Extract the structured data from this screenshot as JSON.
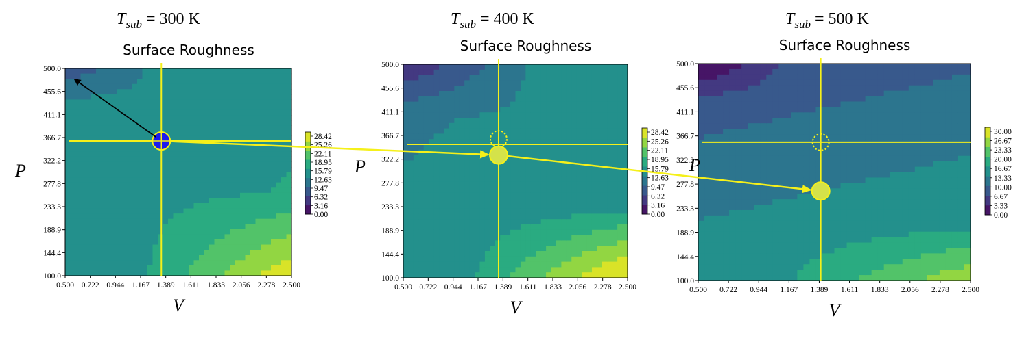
{
  "chart_data": [
    {
      "type": "heatmap",
      "title": "Surface Roughness",
      "tsub_label": "T",
      "tsub_sub": "sub",
      "tsub_value": "= 300 K",
      "xlabel": "V",
      "ylabel": "P",
      "x_ticks": [
        "0.500",
        "0.722",
        "0.944",
        "1.167",
        "1.389",
        "1.611",
        "1.833",
        "2.056",
        "2.278",
        "2.500"
      ],
      "y_ticks": [
        "500.0",
        "455.6",
        "411.1",
        "366.7",
        "322.2",
        "277.8",
        "233.3",
        "188.9",
        "144.4",
        "100.0"
      ],
      "xlim": [
        0.5,
        2.5
      ],
      "ylim": [
        100,
        500
      ],
      "colorbar_ticks": [
        "28.42",
        "25.26",
        "22.11",
        "18.95",
        "15.79",
        "12.63",
        "9.47",
        "6.32",
        "3.16",
        "0.00"
      ],
      "colorbar_range": [
        0,
        28.42
      ],
      "vmax": 30,
      "selected_point": {
        "V": 1.35,
        "P": 360
      },
      "selected_point_style": "blue",
      "crosshair": {
        "V": 1.35,
        "P": 360
      },
      "previous_point": null,
      "arrow_to": {
        "V": 0.55,
        "P": 485
      }
    },
    {
      "type": "heatmap",
      "title": "Surface Roughness",
      "tsub_label": "T",
      "tsub_sub": "sub",
      "tsub_value": "= 400 K",
      "xlabel": "V",
      "ylabel": "P",
      "x_ticks": [
        "0.500",
        "0.722",
        "0.944",
        "1.167",
        "1.389",
        "1.611",
        "1.833",
        "2.056",
        "2.278",
        "2.500"
      ],
      "y_ticks": [
        "500.0",
        "455.6",
        "411.1",
        "366.7",
        "322.2",
        "277.8",
        "233.3",
        "188.9",
        "144.4",
        "100.0"
      ],
      "xlim": [
        0.5,
        2.5
      ],
      "ylim": [
        100,
        500
      ],
      "colorbar_ticks": [
        "28.42",
        "25.26",
        "22.11",
        "18.95",
        "15.79",
        "12.63",
        "9.47",
        "6.32",
        "3.16",
        "0.00"
      ],
      "colorbar_range": [
        0,
        28.42
      ],
      "vmax": 30,
      "selected_point": {
        "V": 1.35,
        "P": 330
      },
      "selected_point_style": "yellow",
      "crosshair": {
        "V": 1.35,
        "P": 350
      },
      "previous_point": {
        "V": 1.35,
        "P": 360
      },
      "arrow_to": null
    },
    {
      "type": "heatmap",
      "title": "Surface Roughness",
      "tsub_label": "T",
      "tsub_sub": "sub",
      "tsub_value": "= 500 K",
      "xlabel": "V",
      "ylabel": "P",
      "x_ticks": [
        "0.500",
        "0.722",
        "0.944",
        "1.167",
        "1.389",
        "1.611",
        "1.833",
        "2.056",
        "2.278",
        "2.500"
      ],
      "y_ticks": [
        "500.0",
        "455.6",
        "411.1",
        "366.7",
        "322.2",
        "277.8",
        "233.3",
        "188.9",
        "144.4",
        "100.0"
      ],
      "xlim": [
        0.5,
        2.5
      ],
      "ylim": [
        100,
        500
      ],
      "colorbar_ticks": [
        "30.00",
        "26.67",
        "23.33",
        "20.00",
        "16.67",
        "13.33",
        "10.00",
        "6.67",
        "3.33",
        "0.00"
      ],
      "colorbar_range": [
        0,
        30
      ],
      "vmax": 30,
      "selected_point": {
        "V": 1.4,
        "P": 265
      },
      "selected_point_style": "yellow",
      "crosshair": {
        "V": 1.4,
        "P": 355
      },
      "previous_point": {
        "V": 1.4,
        "P": 355
      },
      "arrow_to": null
    }
  ],
  "colors": {
    "crosshair": "#f5f01a",
    "point_blue": "#1a1aee",
    "point_yellow": "#d4e24a",
    "arrow_black": "#000000",
    "arrow_yellow": "#f5f01a"
  },
  "viridis": [
    "#440154",
    "#482878",
    "#3e4989",
    "#31688e",
    "#26828e",
    "#1f9e89",
    "#35b779",
    "#6ece58",
    "#b5de2b",
    "#fde725"
  ]
}
